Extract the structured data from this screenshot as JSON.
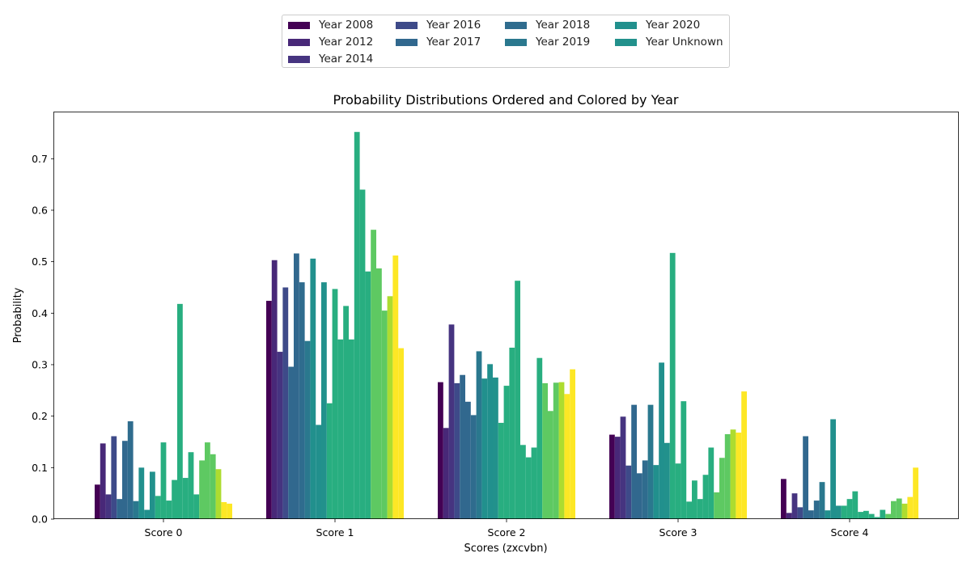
{
  "chart_data": {
    "type": "bar",
    "title": "Probability Distributions Ordered and Colored by Year",
    "xlabel": "Scores (zxcvbn)",
    "ylabel": "Probability",
    "ylim": [
      0,
      0.79
    ],
    "yticks": [
      "0.0",
      "0.1",
      "0.2",
      "0.3",
      "0.4",
      "0.5",
      "0.6",
      "0.7"
    ],
    "categories": [
      "Score 0",
      "Score 1",
      "Score 2",
      "Score 3",
      "Score 4"
    ],
    "legend": {
      "placement": "top-center",
      "entries": [
        {
          "label": "Year 2008",
          "color": "#440154"
        },
        {
          "label": "Year 2012",
          "color": "#482878"
        },
        {
          "label": "Year 2014",
          "color": "#463480"
        },
        {
          "label": "Year 2016",
          "color": "#3e4a89"
        },
        {
          "label": "Year 2017",
          "color": "#31688e"
        },
        {
          "label": "Year 2018",
          "color": "#2f6c8e"
        },
        {
          "label": "Year 2019",
          "color": "#2a788e"
        },
        {
          "label": "Year 2020",
          "color": "#21908d"
        },
        {
          "label": "Year Unknown",
          "color": "#22918c"
        }
      ]
    },
    "bar_colors": [
      "#440154",
      "#482878",
      "#463480",
      "#3e4a89",
      "#31688e",
      "#31688e",
      "#2f6c8e",
      "#2a788e",
      "#21908d",
      "#21908d",
      "#22918c",
      "#28ae80",
      "#28ae80",
      "#28ae80",
      "#28ae80",
      "#28ae80",
      "#28ae80",
      "#28ae80",
      "#28ae80",
      "#5ec962",
      "#5ec962",
      "#5ec962",
      "#addc30",
      "#fde725",
      "#fde725",
      "#fde725",
      "#fde725",
      "#fde725"
    ],
    "series": [
      {
        "values": [
          0.067,
          0.424,
          0.266,
          0.164,
          0.078
        ]
      },
      {
        "values": [
          0.147,
          0.503,
          0.177,
          0.16,
          0.012
        ]
      },
      {
        "values": [
          0.048,
          0.325,
          0.378,
          0.199,
          0.05
        ]
      },
      {
        "values": [
          0.161,
          0.45,
          0.264,
          0.104,
          0.023
        ]
      },
      {
        "values": [
          0.039,
          0.296,
          0.28,
          0.222,
          0.161
        ]
      },
      {
        "values": [
          0.152,
          0.516,
          0.228,
          0.089,
          0.017
        ]
      },
      {
        "values": [
          0.19,
          0.46,
          0.202,
          0.114,
          0.036
        ]
      },
      {
        "values": [
          0.035,
          0.346,
          0.326,
          0.222,
          0.072
        ]
      },
      {
        "values": [
          0.1,
          0.506,
          0.273,
          0.105,
          0.017
        ]
      },
      {
        "values": [
          0.018,
          0.183,
          0.301,
          0.304,
          0.194
        ]
      },
      {
        "values": [
          0.092,
          0.46,
          0.275,
          0.148,
          0.026
        ]
      },
      {
        "values": [
          0.045,
          0.225,
          0.187,
          0.517,
          0.026
        ]
      },
      {
        "values": [
          0.149,
          0.447,
          0.259,
          0.108,
          0.039
        ]
      },
      {
        "values": [
          0.036,
          0.349,
          0.333,
          0.229,
          0.054
        ]
      },
      {
        "values": [
          0.076,
          0.414,
          0.463,
          0.034,
          0.014
        ]
      },
      {
        "values": [
          0.418,
          0.349,
          0.144,
          0.075,
          0.016
        ]
      },
      {
        "values": [
          0.08,
          0.752,
          0.12,
          0.039,
          0.01
        ]
      },
      {
        "values": [
          0.13,
          0.64,
          0.139,
          0.086,
          0.004
        ]
      },
      {
        "values": [
          0.048,
          0.481,
          0.313,
          0.139,
          0.018
        ]
      },
      {
        "values": [
          0.114,
          0.562,
          0.264,
          0.052,
          0.01
        ]
      },
      {
        "values": [
          0.149,
          0.487,
          0.21,
          0.119,
          0.035
        ]
      },
      {
        "values": [
          0.126,
          0.405,
          0.265,
          0.165,
          0.04
        ]
      },
      {
        "values": [
          0.097,
          0.433,
          0.266,
          0.174,
          0.03
        ]
      },
      {
        "values": [
          0.033,
          0.512,
          0.243,
          0.168,
          0.043
        ]
      },
      {
        "values": [
          0.03,
          0.332,
          0.291,
          0.248,
          0.1
        ]
      }
    ]
  }
}
